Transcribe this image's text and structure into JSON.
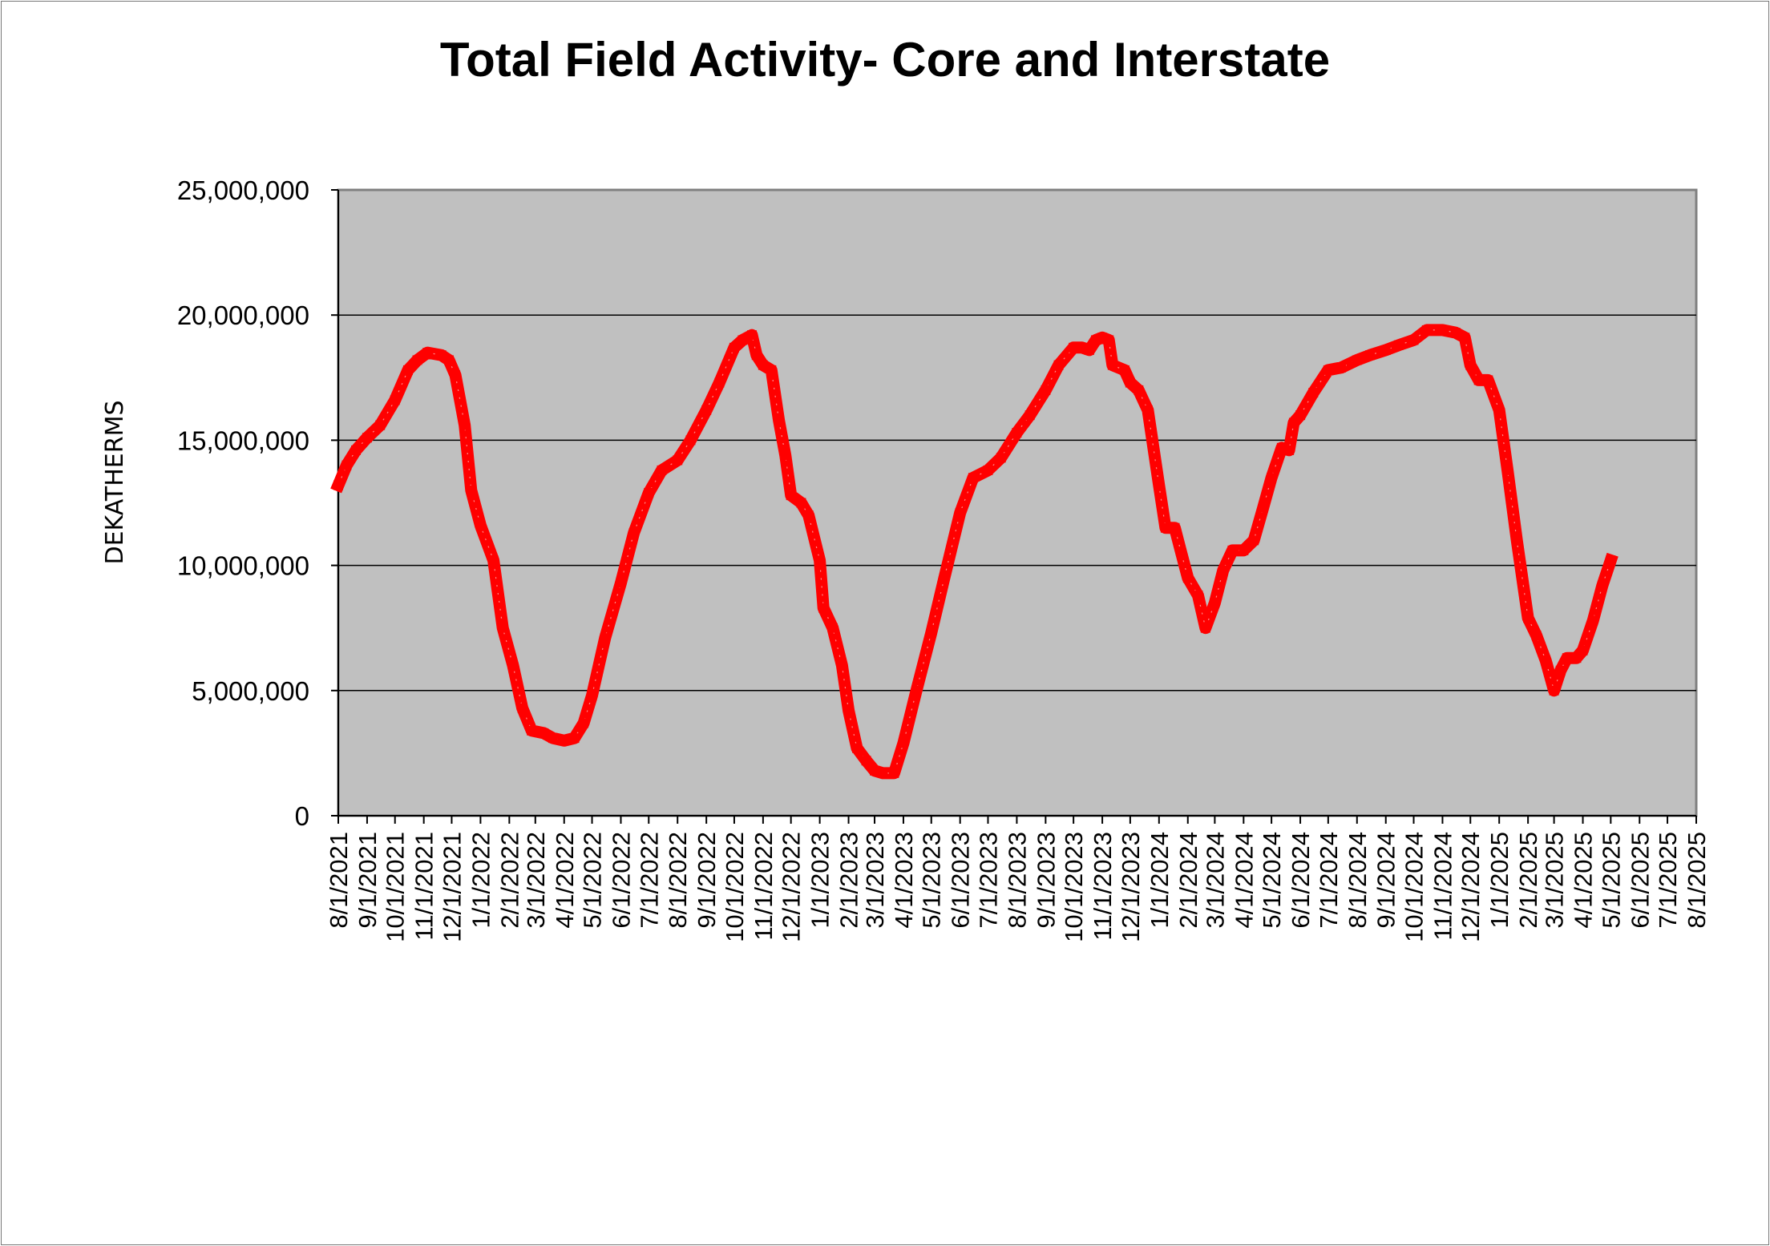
{
  "chart_data": {
    "type": "line",
    "title": "Total Field Activity- Core and Interstate",
    "ylabel": "DEKATHERMS",
    "xlabel": "",
    "ylim": [
      0,
      25000000
    ],
    "yticks": [
      0,
      5000000,
      10000000,
      15000000,
      20000000,
      25000000
    ],
    "ytick_labels": [
      "0",
      "5,000,000",
      "10,000,000",
      "15,000,000",
      "20,000,000",
      "25,000,000"
    ],
    "xlim": [
      "8/1/2021",
      "8/1/2025"
    ],
    "xticks": [
      "8/1/2021",
      "9/1/2021",
      "10/1/2021",
      "11/1/2021",
      "12/1/2021",
      "1/1/2022",
      "2/1/2022",
      "3/1/2022",
      "4/1/2022",
      "5/1/2022",
      "6/1/2022",
      "7/1/2022",
      "8/1/2022",
      "9/1/2022",
      "10/1/2022",
      "11/1/2022",
      "12/1/2022",
      "1/1/2023",
      "2/1/2023",
      "3/1/2023",
      "4/1/2023",
      "5/1/2023",
      "6/1/2023",
      "7/1/2023",
      "8/1/2023",
      "9/1/2023",
      "10/1/2023",
      "11/1/2023",
      "12/1/2023",
      "1/1/2024",
      "2/1/2024",
      "3/1/2024",
      "4/1/2024",
      "5/1/2024",
      "6/1/2024",
      "7/1/2024",
      "8/1/2024",
      "9/1/2024",
      "10/1/2024",
      "11/1/2024",
      "12/1/2024",
      "1/1/2025",
      "2/1/2025",
      "3/1/2025",
      "4/1/2025",
      "5/1/2025",
      "6/1/2025",
      "7/1/2025",
      "8/1/2025"
    ],
    "grid": true,
    "background": "#c0c0c0",
    "series": [
      {
        "name": "",
        "color": "#ff0000",
        "points": [
          [
            "8/1/2021",
            13200000
          ],
          [
            "8/10/2021",
            14000000
          ],
          [
            "8/20/2021",
            14600000
          ],
          [
            "9/1/2021",
            15100000
          ],
          [
            "9/15/2021",
            15600000
          ],
          [
            "10/1/2021",
            16600000
          ],
          [
            "10/15/2021",
            17800000
          ],
          [
            "10/25/2021",
            18200000
          ],
          [
            "11/5/2021",
            18500000
          ],
          [
            "11/20/2021",
            18400000
          ],
          [
            "11/28/2021",
            18200000
          ],
          [
            "12/5/2021",
            17600000
          ],
          [
            "12/15/2021",
            15600000
          ],
          [
            "12/22/2021",
            13000000
          ],
          [
            "1/1/2022",
            11600000
          ],
          [
            "1/15/2022",
            10200000
          ],
          [
            "1/25/2022",
            7500000
          ],
          [
            "2/5/2022",
            6000000
          ],
          [
            "2/15/2022",
            4300000
          ],
          [
            "2/25/2022",
            3400000
          ],
          [
            "3/10/2022",
            3300000
          ],
          [
            "3/20/2022",
            3100000
          ],
          [
            "4/1/2022",
            3000000
          ],
          [
            "4/12/2022",
            3100000
          ],
          [
            "4/22/2022",
            3700000
          ],
          [
            "5/1/2022",
            4800000
          ],
          [
            "5/15/2022",
            7100000
          ],
          [
            "6/1/2022",
            9300000
          ],
          [
            "6/15/2022",
            11300000
          ],
          [
            "7/1/2022",
            12900000
          ],
          [
            "7/15/2022",
            13800000
          ],
          [
            "8/1/2022",
            14200000
          ],
          [
            "8/15/2022",
            15000000
          ],
          [
            "9/1/2022",
            16200000
          ],
          [
            "9/15/2022",
            17300000
          ],
          [
            "10/1/2022",
            18700000
          ],
          [
            "10/10/2022",
            19000000
          ],
          [
            "10/20/2022",
            19200000
          ],
          [
            "10/25/2022",
            18400000
          ],
          [
            "11/1/2022",
            18000000
          ],
          [
            "11/10/2022",
            17800000
          ],
          [
            "11/18/2022",
            15800000
          ],
          [
            "11/25/2022",
            14400000
          ],
          [
            "12/1/2022",
            12800000
          ],
          [
            "12/12/2022",
            12500000
          ],
          [
            "12/20/2022",
            12000000
          ],
          [
            "1/1/2023",
            10200000
          ],
          [
            "1/5/2023",
            8300000
          ],
          [
            "1/15/2023",
            7500000
          ],
          [
            "1/25/2023",
            6000000
          ],
          [
            "2/1/2023",
            4200000
          ],
          [
            "2/10/2023",
            2700000
          ],
          [
            "2/20/2023",
            2200000
          ],
          [
            "3/1/2023",
            1800000
          ],
          [
            "3/10/2023",
            1700000
          ],
          [
            "3/22/2023",
            1700000
          ],
          [
            "4/1/2023",
            2900000
          ],
          [
            "4/15/2023",
            5000000
          ],
          [
            "5/1/2023",
            7300000
          ],
          [
            "5/15/2023",
            9500000
          ],
          [
            "6/1/2023",
            12100000
          ],
          [
            "6/15/2023",
            13500000
          ],
          [
            "7/1/2023",
            13800000
          ],
          [
            "7/15/2023",
            14300000
          ],
          [
            "8/1/2023",
            15300000
          ],
          [
            "8/15/2023",
            16000000
          ],
          [
            "9/1/2023",
            17000000
          ],
          [
            "9/15/2023",
            18000000
          ],
          [
            "10/1/2023",
            18700000
          ],
          [
            "10/10/2023",
            18700000
          ],
          [
            "10/18/2023",
            18600000
          ],
          [
            "10/25/2023",
            19000000
          ],
          [
            "11/1/2023",
            19100000
          ],
          [
            "11/8/2023",
            19000000
          ],
          [
            "11/12/2023",
            18000000
          ],
          [
            "11/25/2023",
            17800000
          ],
          [
            "12/1/2023",
            17300000
          ],
          [
            "12/10/2023",
            17000000
          ],
          [
            "12/20/2023",
            16200000
          ],
          [
            "1/1/2024",
            13200000
          ],
          [
            "1/8/2024",
            11500000
          ],
          [
            "1/18/2024",
            11500000
          ],
          [
            "1/25/2024",
            10500000
          ],
          [
            "2/1/2024",
            9500000
          ],
          [
            "2/12/2024",
            8800000
          ],
          [
            "2/20/2024",
            7500000
          ],
          [
            "3/1/2024",
            8500000
          ],
          [
            "3/10/2024",
            9800000
          ],
          [
            "3/20/2024",
            10600000
          ],
          [
            "4/1/2024",
            10600000
          ],
          [
            "4/12/2024",
            11000000
          ],
          [
            "4/22/2024",
            12300000
          ],
          [
            "5/1/2024",
            13500000
          ],
          [
            "5/12/2024",
            14700000
          ],
          [
            "5/20/2024",
            14600000
          ],
          [
            "5/25/2024",
            15700000
          ],
          [
            "6/1/2024",
            16000000
          ],
          [
            "6/15/2024",
            16900000
          ],
          [
            "7/1/2024",
            17800000
          ],
          [
            "7/15/2024",
            17900000
          ],
          [
            "8/1/2024",
            18200000
          ],
          [
            "8/15/2024",
            18400000
          ],
          [
            "9/1/2024",
            18600000
          ],
          [
            "9/15/2024",
            18800000
          ],
          [
            "10/1/2024",
            19000000
          ],
          [
            "10/15/2024",
            19400000
          ],
          [
            "11/1/2024",
            19400000
          ],
          [
            "11/15/2024",
            19300000
          ],
          [
            "11/25/2024",
            19100000
          ],
          [
            "12/1/2024",
            18000000
          ],
          [
            "12/10/2024",
            17400000
          ],
          [
            "12/20/2024",
            17400000
          ],
          [
            "1/1/2025",
            16200000
          ],
          [
            "1/10/2025",
            13800000
          ],
          [
            "1/20/2025",
            11000000
          ],
          [
            "2/1/2025",
            7900000
          ],
          [
            "2/10/2025",
            7200000
          ],
          [
            "2/20/2025",
            6200000
          ],
          [
            "3/1/2025",
            5000000
          ],
          [
            "3/8/2025",
            5800000
          ],
          [
            "3/15/2025",
            6300000
          ],
          [
            "3/25/2025",
            6300000
          ],
          [
            "4/1/2025",
            6600000
          ],
          [
            "4/12/2025",
            7800000
          ],
          [
            "4/22/2025",
            9200000
          ],
          [
            "5/1/2025",
            10200000
          ]
        ]
      }
    ]
  }
}
